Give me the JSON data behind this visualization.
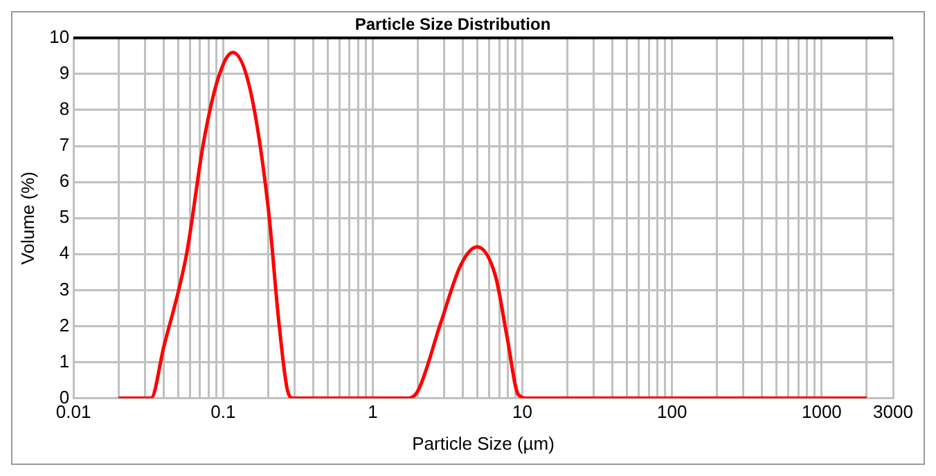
{
  "chart_data": {
    "type": "line",
    "title": "Particle Size Distribution",
    "xlabel": "Particle Size (µm)",
    "ylabel": "Volume (%)",
    "log": "x",
    "grid": true,
    "marker": "none",
    "line_style": "solid",
    "legend": false,
    "xlim": [
      0.01,
      3000
    ],
    "ylim": [
      0,
      10
    ],
    "xticks": [
      0.01,
      {
        "value": 0.02,
        "label": null
      },
      {
        "value": 0.03,
        "label": null
      },
      {
        "value": 0.04,
        "label": null
      },
      {
        "value": 0.05,
        "label": null
      },
      {
        "value": 0.06,
        "label": null
      },
      {
        "value": 0.07,
        "label": null
      },
      {
        "value": 0.08,
        "label": null
      },
      {
        "value": 0.09,
        "label": null
      },
      0.1,
      {
        "value": 0.2,
        "label": null
      },
      {
        "value": 0.3,
        "label": null
      },
      {
        "value": 0.4,
        "label": null
      },
      {
        "value": 0.5,
        "label": null
      },
      {
        "value": 0.6,
        "label": null
      },
      {
        "value": 0.7,
        "label": null
      },
      {
        "value": 0.8,
        "label": null
      },
      {
        "value": 0.9,
        "label": null
      },
      1,
      {
        "value": 2,
        "label": null
      },
      {
        "value": 3,
        "label": null
      },
      {
        "value": 4,
        "label": null
      },
      {
        "value": 5,
        "label": null
      },
      {
        "value": 6,
        "label": null
      },
      {
        "value": 7,
        "label": null
      },
      {
        "value": 8,
        "label": null
      },
      {
        "value": 9,
        "label": null
      },
      10,
      {
        "value": 20,
        "label": null
      },
      {
        "value": 30,
        "label": null
      },
      {
        "value": 40,
        "label": null
      },
      {
        "value": 50,
        "label": null
      },
      {
        "value": 60,
        "label": null
      },
      {
        "value": 70,
        "label": null
      },
      {
        "value": 80,
        "label": null
      },
      {
        "value": 90,
        "label": null
      },
      100,
      {
        "value": 200,
        "label": null
      },
      {
        "value": 300,
        "label": null
      },
      {
        "value": 400,
        "label": null
      },
      {
        "value": 500,
        "label": null
      },
      {
        "value": 600,
        "label": null
      },
      {
        "value": 700,
        "label": null
      },
      {
        "value": 800,
        "label": null
      },
      {
        "value": 900,
        "label": null
      },
      1000,
      {
        "value": 2000,
        "label": null
      },
      3000
    ],
    "yticks": [
      0,
      1,
      2,
      3,
      4,
      5,
      6,
      7,
      8,
      9,
      10
    ],
    "series": [
      {
        "color": "#ff0000",
        "x": [
          0.02,
          0.033,
          0.04,
          0.057,
          0.074,
          0.093,
          0.116,
          0.151,
          0.2,
          0.236,
          0.27,
          0.295,
          1.67,
          2.0,
          2.85,
          3.88,
          4.98,
          6.6,
          7.9,
          9.4,
          10.8,
          2000
        ],
        "values": [
          0,
          0,
          1.4,
          4.0,
          7.1,
          8.9,
          9.6,
          8.6,
          5.3,
          2.1,
          0.2,
          0,
          0,
          0.2,
          2.1,
          3.7,
          4.2,
          3.4,
          1.7,
          0.1,
          0,
          0
        ]
      }
    ]
  }
}
